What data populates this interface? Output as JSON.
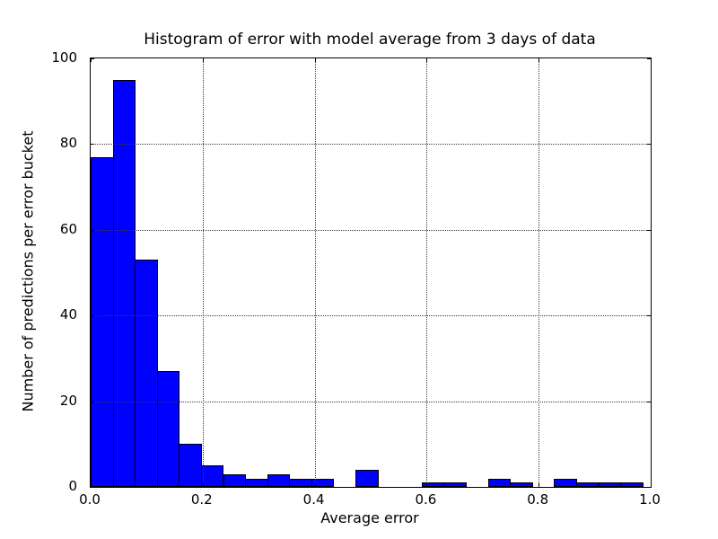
{
  "chart_data": {
    "type": "bar",
    "subtype": "histogram",
    "title": "Histogram of error with model average from 3 days of data",
    "xlabel": "Average error",
    "ylabel": "Number of predictions per error bucket",
    "xlim": [
      0.0,
      1.0
    ],
    "ylim": [
      0,
      100
    ],
    "xticks": [
      "0.0",
      "0.2",
      "0.4",
      "0.6",
      "0.8",
      "1.0"
    ],
    "yticks": [
      "0",
      "20",
      "40",
      "60",
      "80",
      "100"
    ],
    "grid": true,
    "grid_style": "dotted",
    "legend": "none",
    "bar_color": "#0000ff",
    "bar_edge_color": "#000000",
    "bin_start": 0.0,
    "bin_width": 0.0394,
    "counts": [
      77,
      95,
      53,
      27,
      10,
      5,
      3,
      2,
      3,
      2,
      2,
      0,
      4,
      0,
      0,
      1,
      1,
      0,
      2,
      1,
      0,
      2,
      1,
      1,
      1
    ]
  }
}
